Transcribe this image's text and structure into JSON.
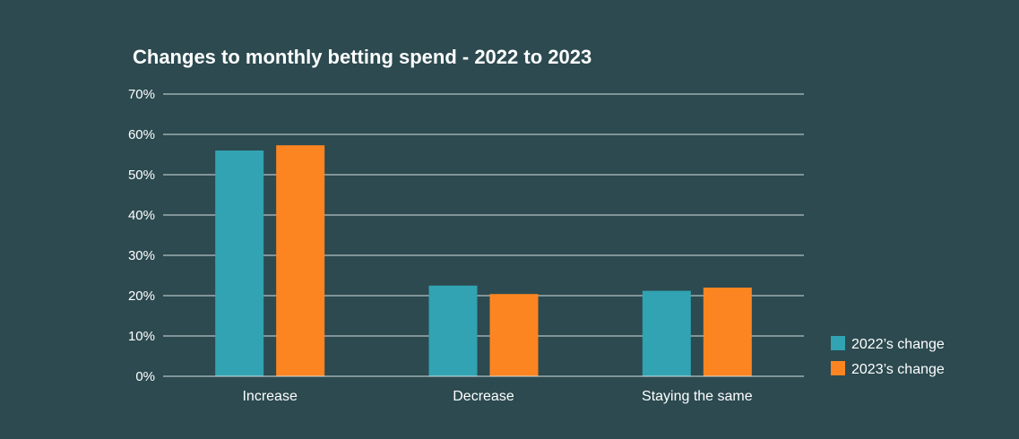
{
  "chart_data": {
    "type": "bar",
    "title": "Changes to monthly betting spend - 2022 to 2023",
    "categories": [
      "Increase",
      "Decrease",
      "Staying the same"
    ],
    "series": [
      {
        "name": "2022’s change",
        "values": [
          56,
          22.5,
          21.2
        ],
        "color": "#31a3b2"
      },
      {
        "name": "2023’s change",
        "values": [
          57.3,
          20.4,
          22.0
        ],
        "color": "#fd8521"
      }
    ],
    "ylim": [
      0,
      70
    ],
    "yticks": [
      "0%",
      "10%",
      "20%",
      "30%",
      "40%",
      "50%",
      "60%",
      "70%"
    ],
    "grid": true,
    "legend_position": "bottom-right",
    "xlabel": "",
    "ylabel": ""
  }
}
